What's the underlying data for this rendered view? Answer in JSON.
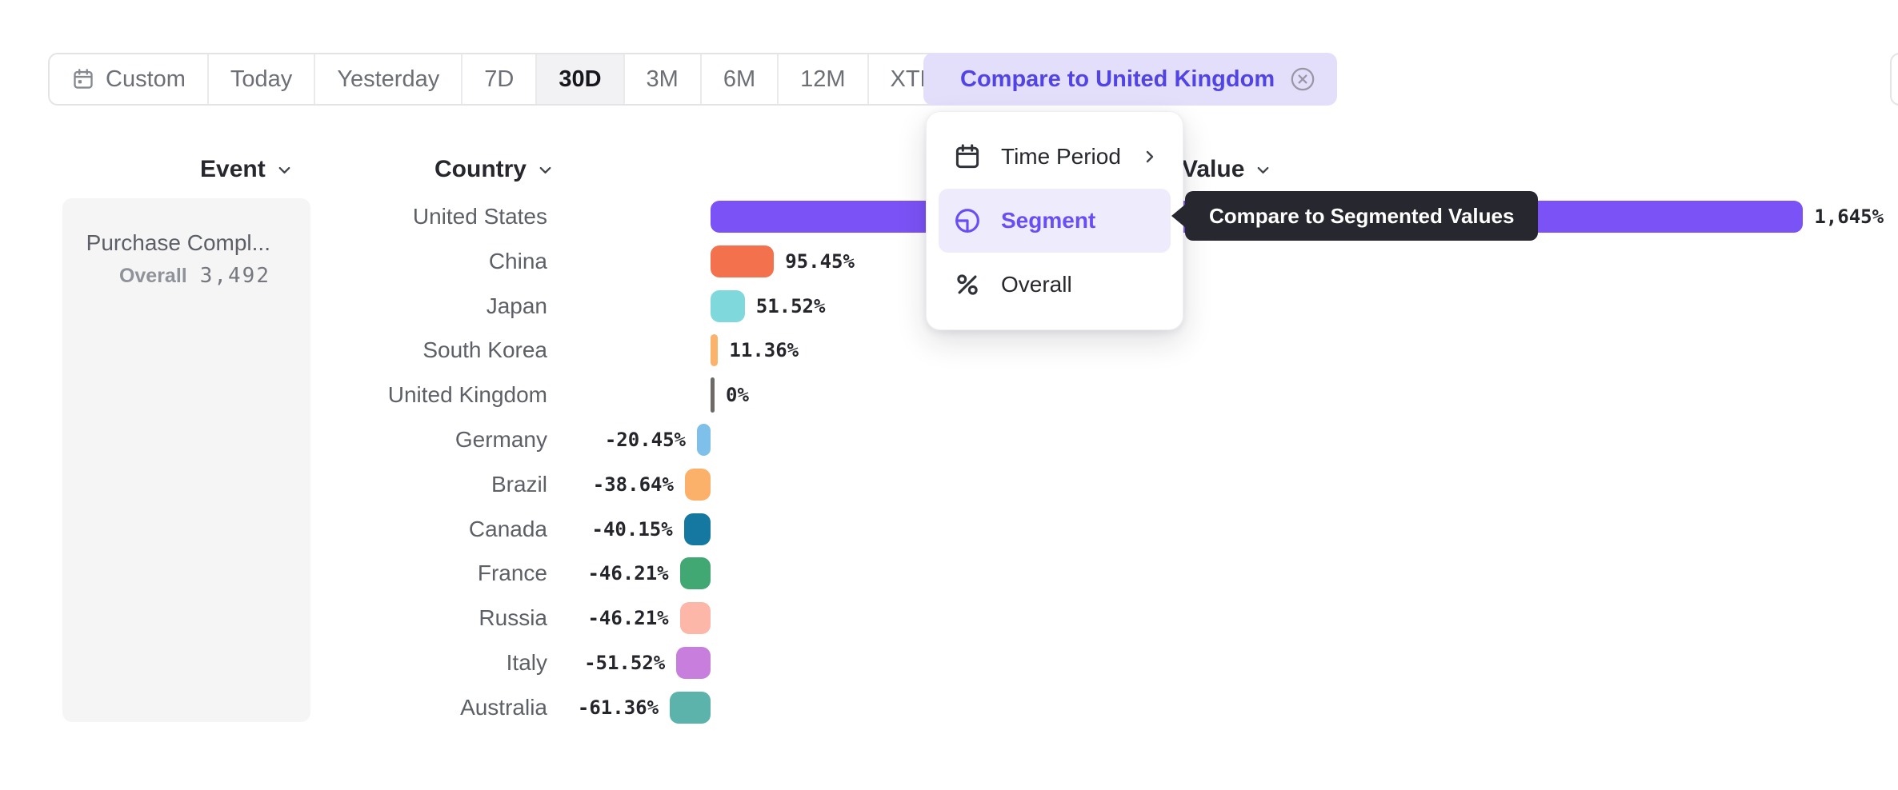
{
  "toolbar": {
    "items": [
      {
        "label": "Custom",
        "icon": "calendar"
      },
      {
        "label": "Today"
      },
      {
        "label": "Yesterday"
      },
      {
        "label": "7D"
      },
      {
        "label": "30D",
        "selected": true
      },
      {
        "label": "3M"
      },
      {
        "label": "6M"
      },
      {
        "label": "12M"
      },
      {
        "label": "XTD",
        "chevron": true
      }
    ]
  },
  "compare_button": {
    "label": "Compare to United Kingdom"
  },
  "column_headers": {
    "event": "Event",
    "country": "Country",
    "value": "Value"
  },
  "event_panel": {
    "title": "Purchase Compl...",
    "overall_label": "Overall",
    "overall_value": "3,492"
  },
  "menu": {
    "items": [
      {
        "label": "Time Period",
        "icon": "calendar",
        "submenu": true
      },
      {
        "label": "Segment",
        "icon": "segment",
        "selected": true
      },
      {
        "label": "Overall",
        "icon": "percent"
      }
    ]
  },
  "tooltip": {
    "text": "Compare to Segmented Values"
  },
  "chart_data": {
    "type": "bar",
    "orientation": "horizontal",
    "unit": "percent-change-vs-baseline",
    "baseline": "United Kingdom",
    "group_by": "Country",
    "categories": [
      "United States",
      "China",
      "Japan",
      "South Korea",
      "United Kingdom",
      "Germany",
      "Brazil",
      "Canada",
      "France",
      "Russia",
      "Italy",
      "Australia"
    ],
    "values": [
      1645,
      95.45,
      51.52,
      11.36,
      0,
      -20.45,
      -38.64,
      -40.15,
      -46.21,
      -46.21,
      -51.52,
      -61.36
    ],
    "value_labels": [
      "1,645%",
      "95.45%",
      "51.52%",
      "11.36%",
      "0%",
      "-20.45%",
      "-38.64%",
      "-40.15%",
      "-46.21%",
      "-46.21%",
      "-51.52%",
      "-61.36%"
    ],
    "bar_colors": [
      "#7B52F6",
      "#F4714D",
      "#7ED8DC",
      "#FBB26A",
      "#6E6A67",
      "#7EC0EA",
      "#FBB169",
      "#1478A0",
      "#41A874",
      "#FDB7A8",
      "#C77EDC",
      "#5BB3AB"
    ],
    "dot_pattern_colors": [
      null,
      null,
      null,
      null,
      null,
      "#4FA3DC",
      "#FDD8AE",
      null,
      null,
      null,
      null,
      null
    ],
    "legend": "none",
    "grid": "off"
  },
  "colors": {
    "accent": "#6A4DF5",
    "compare_pill_bg": "#E3DFFB",
    "compare_pill_text": "#5244E4",
    "menu_highlight_bg": "#EEEBFD",
    "tooltip_bg": "#26272F",
    "panel_bg": "#F5F5F6",
    "selected_tab_bg": "#F2F2F4"
  }
}
